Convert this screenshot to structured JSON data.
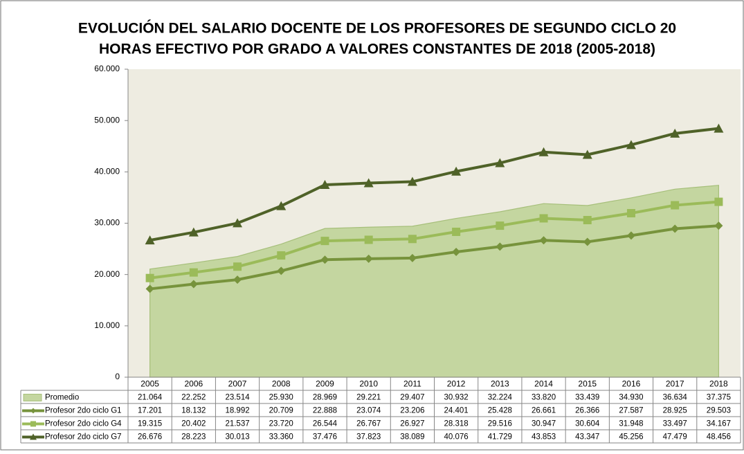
{
  "chart_data": {
    "type": "line",
    "title": [
      "EVOLUCIÓN DEL SALARIO DOCENTE DE LOS PROFESORES DE SEGUNDO CICLO 20",
      "HORAS EFECTIVO POR GRADO A VALORES CONSTANTES DE 2018 (2005-2018)"
    ],
    "categories": [
      "2005",
      "2006",
      "2007",
      "2008",
      "2009",
      "2010",
      "2011",
      "2012",
      "2013",
      "2014",
      "2015",
      "2016",
      "2017",
      "2018"
    ],
    "ylim": [
      0,
      60000
    ],
    "yticks": [
      0,
      {
        "value": 10000,
        "label": "10.000"
      },
      {
        "value": 20000,
        "label": "20.000"
      },
      {
        "value": 30000,
        "label": "30.000"
      },
      {
        "value": 40000,
        "label": "40.000"
      },
      {
        "value": 50000,
        "label": "50.000"
      },
      {
        "value": 60000,
        "label": "60.000"
      }
    ],
    "grid": false,
    "series": [
      {
        "name": "Promedio",
        "type": "area",
        "color": "#c4d6a0",
        "values": [
          21064,
          22252,
          23514,
          25930,
          28969,
          29221,
          29407,
          30932,
          32224,
          33820,
          33439,
          34930,
          36634,
          37375
        ],
        "value_labels": [
          "21.064",
          "22.252",
          "23.514",
          "25.930",
          "28.969",
          "29.221",
          "29.407",
          "30.932",
          "32.224",
          "33.820",
          "33.439",
          "34.930",
          "36.634",
          "37.375"
        ]
      },
      {
        "name": "Profesor 2do ciclo G1",
        "marker": "diamond",
        "color": "#77933c",
        "values": [
          17201,
          18132,
          18992,
          20709,
          22888,
          23074,
          23206,
          24401,
          25428,
          26661,
          26366,
          27587,
          28925,
          29503
        ],
        "value_labels": [
          "17.201",
          "18.132",
          "18.992",
          "20.709",
          "22.888",
          "23.074",
          "23.206",
          "24.401",
          "25.428",
          "26.661",
          "26.366",
          "27.587",
          "28.925",
          "29.503"
        ]
      },
      {
        "name": "Profesor 2do ciclo G4",
        "marker": "square",
        "color": "#9bbb59",
        "values": [
          19315,
          20402,
          21537,
          23720,
          26544,
          26767,
          26927,
          28318,
          29516,
          30947,
          30604,
          31948,
          33497,
          34167
        ],
        "value_labels": [
          "19.315",
          "20.402",
          "21.537",
          "23.720",
          "26.544",
          "26.767",
          "26.927",
          "28.318",
          "29.516",
          "30.947",
          "30.604",
          "31.948",
          "33.497",
          "34.167"
        ]
      },
      {
        "name": "Profesor 2do ciclo G7",
        "marker": "triangle",
        "color": "#4f6228",
        "values": [
          26676,
          28223,
          30013,
          33360,
          37476,
          37823,
          38089,
          40076,
          41729,
          43853,
          43347,
          45256,
          47479,
          48456
        ],
        "value_labels": [
          "26.676",
          "28.223",
          "30.013",
          "33.360",
          "37.476",
          "37.823",
          "38.089",
          "40.076",
          "41.729",
          "43.853",
          "43.347",
          "45.256",
          "47.479",
          "48.456"
        ]
      }
    ]
  }
}
